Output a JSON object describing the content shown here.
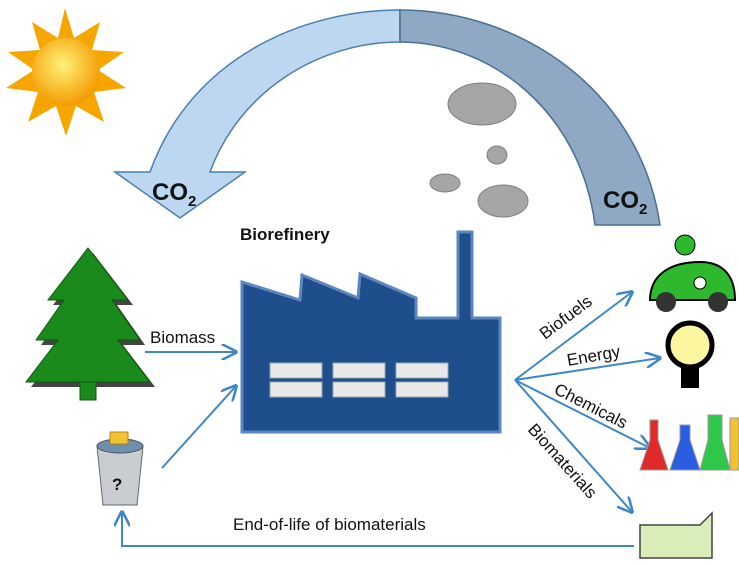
{
  "co2_left": {
    "text": "CO",
    "subscript": "2"
  },
  "co2_right": {
    "text": "CO",
    "subscript": "2"
  },
  "title": "Biorefinery",
  "input": "Biomass",
  "outputs": [
    "Biofuels",
    "Energy",
    "Chemicals",
    "Biomaterials"
  ],
  "loop": "End-of-life of biomaterials"
}
